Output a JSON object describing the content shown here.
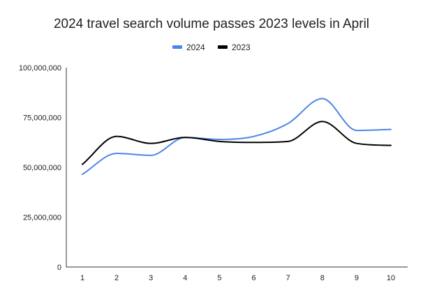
{
  "chart_data": {
    "type": "line",
    "title": "2024 travel search volume passes 2023 levels in April",
    "xlabel": "",
    "ylabel": "",
    "x": [
      1,
      2,
      3,
      4,
      5,
      6,
      7,
      8,
      9,
      10
    ],
    "ylim": [
      0,
      100000000
    ],
    "yticks": [
      0,
      25000000,
      50000000,
      75000000,
      100000000
    ],
    "ytick_labels": [
      "0",
      "25,000,000",
      "50,000,000",
      "75,000,000",
      "100,000,000"
    ],
    "series": [
      {
        "name": "2024",
        "color": "#4a86e8",
        "values": [
          46500000,
          57000000,
          56000000,
          65000000,
          64000000,
          65500000,
          72000000,
          84500000,
          68500000,
          69000000
        ]
      },
      {
        "name": "2023",
        "color": "#000000",
        "values": [
          51500000,
          65500000,
          62000000,
          65000000,
          63000000,
          62500000,
          63000000,
          73000000,
          62000000,
          61000000
        ]
      }
    ],
    "legend_position": "top-center",
    "grid": false,
    "smooth": true
  }
}
